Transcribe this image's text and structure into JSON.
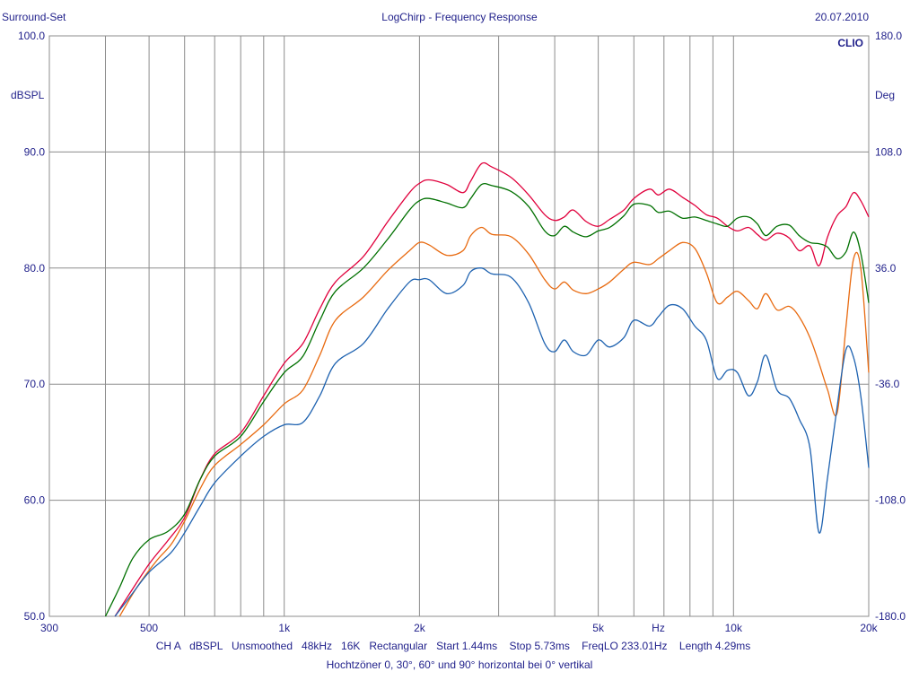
{
  "header": {
    "left": "Surround-Set",
    "center": "LogChirp - Frequency Response",
    "right": "20.07.2010"
  },
  "brand": "CLIO",
  "left_axis_unit": "dBSPL",
  "right_axis_unit": "Deg",
  "x_unit_label": "Hz",
  "info_line": "CH A   dBSPL   Unsmoothed   48kHz   16K   Rectangular   Start 1.44ms    Stop 5.73ms    FreqLO 233.01Hz    Length 4.29ms",
  "caption": "Hochtzöner 0, 30°, 60° und 90° horizontal bei 0° vertikal",
  "colors": {
    "red": "#e0003c",
    "green": "#007000",
    "orange": "#e86a10",
    "blue": "#1e62b0",
    "grid": "#8c8c8c",
    "text": "#1f1f8a"
  },
  "chart_data": {
    "type": "line",
    "title": "LogChirp - Frequency Response",
    "xscale": "log",
    "xlim": [
      300,
      20000
    ],
    "ylim": [
      50,
      100
    ],
    "y2lim": [
      -180,
      180
    ],
    "grid": true,
    "x_tick_labels": [
      {
        "value": 300,
        "label": "300"
      },
      {
        "value": 500,
        "label": "500"
      },
      {
        "value": 1000,
        "label": "1k"
      },
      {
        "value": 2000,
        "label": "2k"
      },
      {
        "value": 5000,
        "label": "5k"
      },
      {
        "value": 10000,
        "label": "10k"
      },
      {
        "value": 20000,
        "label": "20k"
      }
    ],
    "y_tick_labels": [
      {
        "value": 100,
        "label": "100.0"
      },
      {
        "value": 90,
        "label": "90.0"
      },
      {
        "value": 80,
        "label": "80.0"
      },
      {
        "value": 70,
        "label": "70.0"
      },
      {
        "value": 60,
        "label": "60.0"
      },
      {
        "value": 50,
        "label": "50.0"
      }
    ],
    "y2_tick_labels": [
      {
        "value": 180,
        "label": "180.0"
      },
      {
        "value": 108,
        "label": "108.0"
      },
      {
        "value": 36,
        "label": "36.0"
      },
      {
        "value": -36,
        "label": "-36.0"
      },
      {
        "value": -108,
        "label": "-108.0"
      },
      {
        "value": -180,
        "label": "-180.0"
      }
    ],
    "series": [
      {
        "color": "#e0003c",
        "points": [
          [
            420,
            50.0
          ],
          [
            450,
            51.8
          ],
          [
            500,
            54.5
          ],
          [
            550,
            56.5
          ],
          [
            600,
            58.5
          ],
          [
            650,
            61.8
          ],
          [
            700,
            64.0
          ],
          [
            800,
            65.8
          ],
          [
            900,
            69.0
          ],
          [
            1000,
            71.8
          ],
          [
            1100,
            73.5
          ],
          [
            1200,
            76.5
          ],
          [
            1300,
            78.8
          ],
          [
            1500,
            81.0
          ],
          [
            1700,
            84.0
          ],
          [
            1900,
            86.5
          ],
          [
            2000,
            87.3
          ],
          [
            2100,
            87.6
          ],
          [
            2300,
            87.2
          ],
          [
            2500,
            86.5
          ],
          [
            2600,
            87.5
          ],
          [
            2750,
            89.0
          ],
          [
            2900,
            88.7
          ],
          [
            3200,
            87.8
          ],
          [
            3500,
            86.3
          ],
          [
            3800,
            84.6
          ],
          [
            4000,
            84.1
          ],
          [
            4200,
            84.4
          ],
          [
            4400,
            85.0
          ],
          [
            4700,
            84.0
          ],
          [
            5000,
            83.6
          ],
          [
            5300,
            84.2
          ],
          [
            5700,
            85.0
          ],
          [
            6000,
            86.0
          ],
          [
            6500,
            86.8
          ],
          [
            6800,
            86.3
          ],
          [
            7200,
            86.8
          ],
          [
            7700,
            86.1
          ],
          [
            8200,
            85.4
          ],
          [
            8700,
            84.6
          ],
          [
            9200,
            84.3
          ],
          [
            9700,
            83.6
          ],
          [
            10200,
            83.2
          ],
          [
            10800,
            83.5
          ],
          [
            11300,
            82.9
          ],
          [
            11800,
            82.4
          ],
          [
            12500,
            83.0
          ],
          [
            13300,
            82.6
          ],
          [
            14000,
            81.5
          ],
          [
            14800,
            81.9
          ],
          [
            15500,
            80.2
          ],
          [
            16200,
            82.7
          ],
          [
            17000,
            84.5
          ],
          [
            17800,
            85.3
          ],
          [
            18500,
            86.5
          ],
          [
            19200,
            85.8
          ],
          [
            20000,
            84.4
          ]
        ]
      },
      {
        "color": "#007000",
        "points": [
          [
            400,
            50.0
          ],
          [
            430,
            52.5
          ],
          [
            460,
            55.0
          ],
          [
            500,
            56.6
          ],
          [
            550,
            57.3
          ],
          [
            600,
            58.8
          ],
          [
            650,
            61.8
          ],
          [
            700,
            63.8
          ],
          [
            800,
            65.5
          ],
          [
            900,
            68.5
          ],
          [
            1000,
            71.0
          ],
          [
            1100,
            72.4
          ],
          [
            1200,
            75.5
          ],
          [
            1300,
            78.0
          ],
          [
            1500,
            80.0
          ],
          [
            1700,
            82.5
          ],
          [
            1900,
            85.0
          ],
          [
            2000,
            85.8
          ],
          [
            2100,
            86.0
          ],
          [
            2300,
            85.6
          ],
          [
            2500,
            85.2
          ],
          [
            2600,
            86.0
          ],
          [
            2750,
            87.2
          ],
          [
            2900,
            87.1
          ],
          [
            3200,
            86.6
          ],
          [
            3500,
            85.3
          ],
          [
            3800,
            83.2
          ],
          [
            4000,
            82.8
          ],
          [
            4200,
            83.6
          ],
          [
            4400,
            83.1
          ],
          [
            4700,
            82.7
          ],
          [
            5000,
            83.2
          ],
          [
            5300,
            83.5
          ],
          [
            5700,
            84.5
          ],
          [
            6000,
            85.5
          ],
          [
            6500,
            85.4
          ],
          [
            6800,
            84.8
          ],
          [
            7200,
            84.9
          ],
          [
            7700,
            84.3
          ],
          [
            8200,
            84.4
          ],
          [
            8700,
            84.1
          ],
          [
            9200,
            83.8
          ],
          [
            9700,
            83.6
          ],
          [
            10200,
            84.3
          ],
          [
            10800,
            84.4
          ],
          [
            11300,
            83.8
          ],
          [
            11800,
            82.8
          ],
          [
            12500,
            83.6
          ],
          [
            13300,
            83.7
          ],
          [
            14000,
            82.8
          ],
          [
            14800,
            82.2
          ],
          [
            15500,
            82.1
          ],
          [
            16200,
            81.8
          ],
          [
            17000,
            80.8
          ],
          [
            17800,
            81.4
          ],
          [
            18500,
            83.1
          ],
          [
            19200,
            81.3
          ],
          [
            20000,
            77.0
          ]
        ]
      },
      {
        "color": "#e86a10",
        "points": [
          [
            430,
            50.0
          ],
          [
            470,
            52.5
          ],
          [
            520,
            54.8
          ],
          [
            560,
            56.2
          ],
          [
            600,
            58.2
          ],
          [
            650,
            61.0
          ],
          [
            700,
            63.0
          ],
          [
            800,
            64.8
          ],
          [
            900,
            66.5
          ],
          [
            1000,
            68.3
          ],
          [
            1100,
            69.5
          ],
          [
            1200,
            72.5
          ],
          [
            1300,
            75.5
          ],
          [
            1500,
            77.5
          ],
          [
            1700,
            79.8
          ],
          [
            1900,
            81.5
          ],
          [
            2000,
            82.2
          ],
          [
            2100,
            82.0
          ],
          [
            2300,
            81.1
          ],
          [
            2500,
            81.5
          ],
          [
            2600,
            82.8
          ],
          [
            2750,
            83.5
          ],
          [
            2900,
            82.9
          ],
          [
            3200,
            82.7
          ],
          [
            3500,
            81.2
          ],
          [
            3800,
            79.0
          ],
          [
            4000,
            78.2
          ],
          [
            4200,
            78.8
          ],
          [
            4400,
            78.1
          ],
          [
            4700,
            77.8
          ],
          [
            5000,
            78.2
          ],
          [
            5300,
            78.8
          ],
          [
            5700,
            79.9
          ],
          [
            6000,
            80.5
          ],
          [
            6500,
            80.3
          ],
          [
            6800,
            80.8
          ],
          [
            7200,
            81.5
          ],
          [
            7700,
            82.2
          ],
          [
            8200,
            81.7
          ],
          [
            8700,
            79.6
          ],
          [
            9200,
            77.0
          ],
          [
            9700,
            77.5
          ],
          [
            10200,
            78.0
          ],
          [
            10800,
            77.2
          ],
          [
            11300,
            76.5
          ],
          [
            11800,
            77.8
          ],
          [
            12500,
            76.4
          ],
          [
            13300,
            76.7
          ],
          [
            14000,
            75.8
          ],
          [
            14800,
            74.0
          ],
          [
            15500,
            71.8
          ],
          [
            16200,
            69.5
          ],
          [
            17000,
            67.5
          ],
          [
            17800,
            75.0
          ],
          [
            18500,
            80.8
          ],
          [
            19200,
            80.0
          ],
          [
            20000,
            71.0
          ]
        ]
      },
      {
        "color": "#1e62b0",
        "points": [
          [
            420,
            50.0
          ],
          [
            460,
            52.0
          ],
          [
            500,
            53.8
          ],
          [
            560,
            55.5
          ],
          [
            600,
            57.2
          ],
          [
            650,
            59.5
          ],
          [
            700,
            61.5
          ],
          [
            800,
            63.8
          ],
          [
            900,
            65.5
          ],
          [
            1000,
            66.5
          ],
          [
            1100,
            66.7
          ],
          [
            1200,
            69.0
          ],
          [
            1300,
            71.8
          ],
          [
            1500,
            73.5
          ],
          [
            1700,
            76.5
          ],
          [
            1900,
            78.8
          ],
          [
            2000,
            79.0
          ],
          [
            2100,
            79.0
          ],
          [
            2300,
            77.8
          ],
          [
            2500,
            78.5
          ],
          [
            2600,
            79.7
          ],
          [
            2750,
            80.0
          ],
          [
            2900,
            79.5
          ],
          [
            3200,
            79.2
          ],
          [
            3500,
            77.0
          ],
          [
            3800,
            73.5
          ],
          [
            4000,
            72.8
          ],
          [
            4200,
            73.8
          ],
          [
            4400,
            72.8
          ],
          [
            4700,
            72.5
          ],
          [
            5000,
            73.8
          ],
          [
            5300,
            73.2
          ],
          [
            5700,
            74.0
          ],
          [
            6000,
            75.5
          ],
          [
            6500,
            75.0
          ],
          [
            6800,
            75.8
          ],
          [
            7200,
            76.8
          ],
          [
            7700,
            76.5
          ],
          [
            8200,
            75.0
          ],
          [
            8700,
            73.8
          ],
          [
            9200,
            70.5
          ],
          [
            9700,
            71.2
          ],
          [
            10200,
            71.0
          ],
          [
            10800,
            69.0
          ],
          [
            11300,
            70.2
          ],
          [
            11800,
            72.5
          ],
          [
            12500,
            69.5
          ],
          [
            13300,
            68.8
          ],
          [
            14000,
            67.0
          ],
          [
            14800,
            64.5
          ],
          [
            15500,
            57.2
          ],
          [
            16200,
            62.0
          ],
          [
            17000,
            68.0
          ],
          [
            17800,
            73.0
          ],
          [
            18500,
            72.3
          ],
          [
            19200,
            69.0
          ],
          [
            20000,
            62.8
          ]
        ]
      }
    ]
  }
}
